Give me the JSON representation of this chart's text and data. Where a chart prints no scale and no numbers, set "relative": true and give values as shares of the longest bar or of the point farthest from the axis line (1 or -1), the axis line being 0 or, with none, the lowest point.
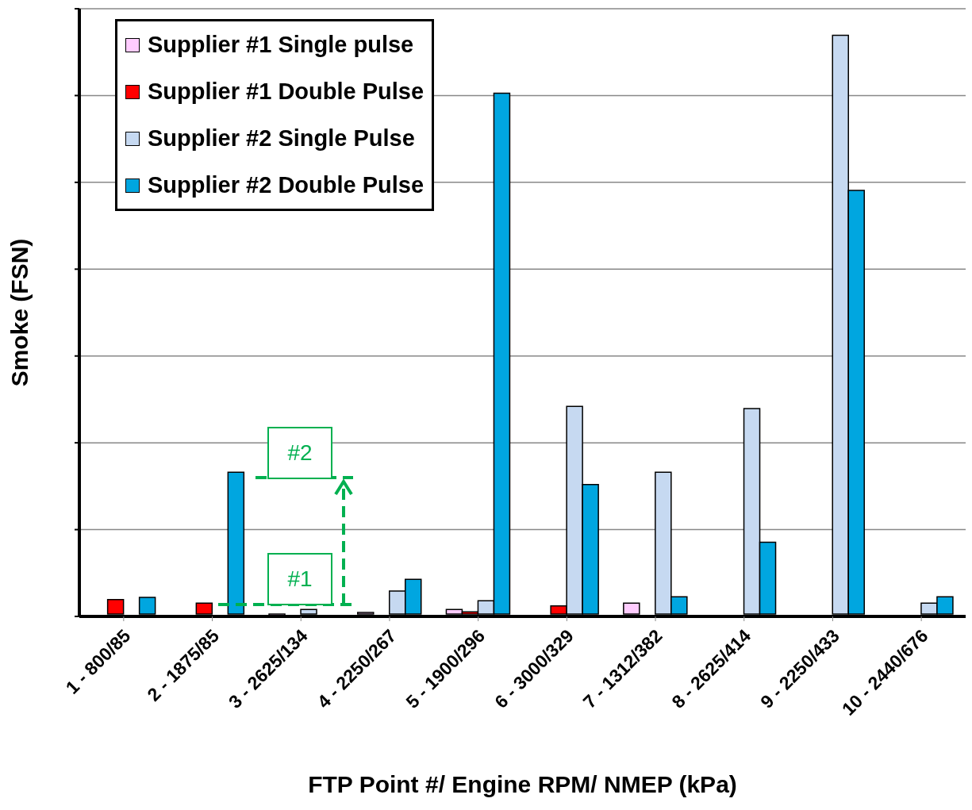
{
  "chart_data": {
    "type": "bar",
    "relative": true,
    "xlabel": "FTP Point #/ Engine RPM/ NMEP (kPa)",
    "ylabel": "Smoke (FSN)",
    "categories": [
      "1 - 800/85",
      "2 - 1875/85",
      "3 - 2625/134",
      "4 - 2250/267",
      "5 - 1900/296",
      "6 - 3000/329",
      "7 - 1312/382",
      "8 - 2625/414",
      "9 - 2250/433",
      "10 - 2440/676"
    ],
    "series": [
      {
        "name": "Supplier #1 Single pulse",
        "color": "#ffccff",
        "values": [
          null,
          null,
          -0.004,
          0.003,
          0.008,
          null,
          0.019,
          null,
          null,
          null
        ]
      },
      {
        "name": "Supplier #1 Double Pulse",
        "color": "#ff0000",
        "values": [
          0.025,
          0.019,
          null,
          null,
          0.004,
          0.014,
          null,
          null,
          null,
          null
        ]
      },
      {
        "name": "Supplier #2 Single Pulse",
        "color": "#c6d9f1",
        "values": [
          null,
          null,
          0.008,
          0.04,
          0.023,
          0.359,
          0.245,
          0.355,
          1,
          0.019
        ]
      },
      {
        "name": "Supplier #2 Double Pulse",
        "color": "#00a6e0",
        "values": [
          0.029,
          0.245,
          null,
          0.06,
          0.9,
          0.224,
          0.03,
          0.124,
          0.732,
          0.03
        ]
      }
    ],
    "grid": "y",
    "legend": "top left",
    "annotations": [
      "#2",
      "#1"
    ]
  }
}
